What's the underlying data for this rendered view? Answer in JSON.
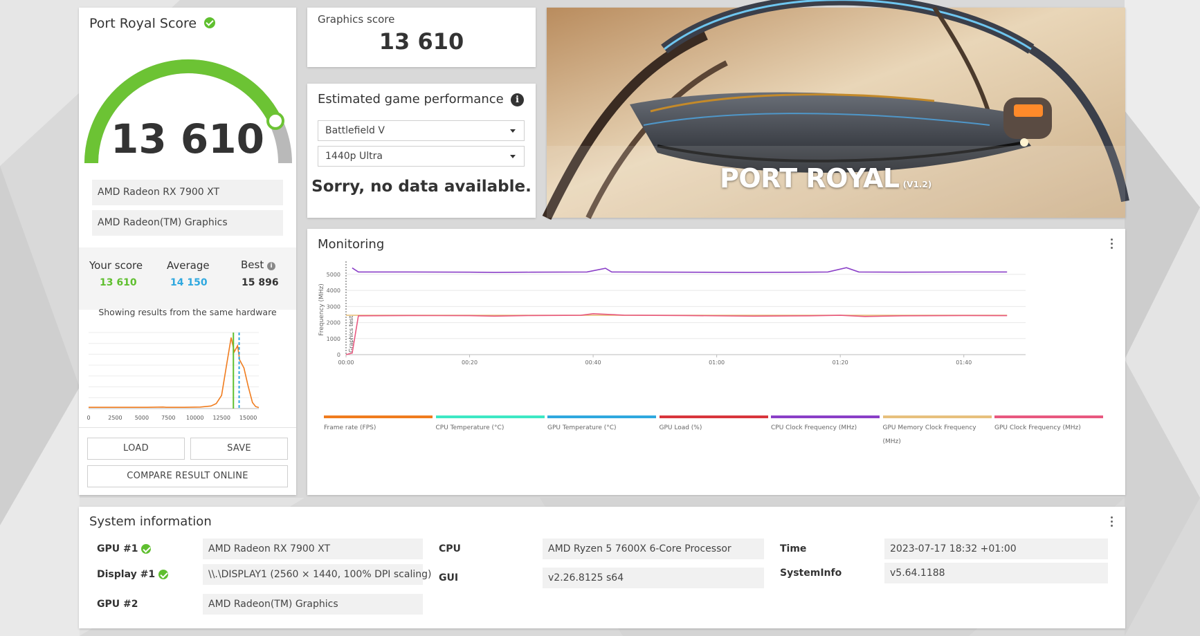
{
  "score_card": {
    "title": "Port Royal Score",
    "score": "13 610",
    "gpu_primary": "AMD Radeon RX 7900 XT",
    "gpu_secondary": "AMD Radeon(TM) Graphics",
    "your_score_label": "Your score",
    "your_score_value": "13 610",
    "average_label": "Average",
    "average_value": "14 150",
    "best_label": "Best",
    "best_value": "15 896",
    "note": "Showing results from the same hardware",
    "load_label": "LOAD",
    "save_label": "SAVE",
    "compare_label": "COMPARE RESULT ONLINE",
    "gauge_color": "#6cc334",
    "gauge_track_color": "#b9b9b9"
  },
  "distribution_chart": {
    "type": "area",
    "x_ticks": [
      "0",
      "2500",
      "5000",
      "7500",
      "10000",
      "12500",
      "15000"
    ],
    "x_range": [
      0,
      16000
    ],
    "your_score": 13610,
    "average": 14150,
    "points": [
      [
        0,
        1.2
      ],
      [
        1500,
        1.2
      ],
      [
        3000,
        1.2
      ],
      [
        5500,
        1.2
      ],
      [
        7000,
        1.5
      ],
      [
        7300,
        1.2
      ],
      [
        9000,
        1.2
      ],
      [
        10500,
        1.5
      ],
      [
        11500,
        2.5
      ],
      [
        12000,
        5
      ],
      [
        12500,
        13
      ],
      [
        13000,
        45
      ],
      [
        13400,
        70
      ],
      [
        13700,
        56
      ],
      [
        14000,
        62
      ],
      [
        14200,
        48
      ],
      [
        14600,
        40
      ],
      [
        15000,
        22
      ],
      [
        15400,
        6
      ],
      [
        15700,
        2
      ],
      [
        16000,
        1
      ]
    ],
    "curve_color": "#f07c1e",
    "your_color": "#5fbf2f",
    "average_color": "#2fa8df"
  },
  "graphics_score": {
    "label": "Graphics score",
    "value": "13 610"
  },
  "game_perf": {
    "title": "Estimated game performance",
    "game": "Battlefield V",
    "preset": "1440p Ultra",
    "message": "Sorry, no data available."
  },
  "banner": {
    "title": "PORT ROYAL",
    "version": "(V1.2)"
  },
  "monitoring": {
    "title": "Monitoring",
    "chart_data": {
      "type": "line",
      "ylabel": "Frequency (MHz)",
      "marker_label": "Graphics test",
      "y_ticks": [
        0,
        1000,
        2000,
        3000,
        4000,
        5000
      ],
      "ylim": [
        0,
        5600
      ],
      "x_ticks": [
        "00:00",
        "00:20",
        "00:40",
        "01:00",
        "01:20",
        "01:40"
      ],
      "x_tick_seconds": [
        0,
        20,
        40,
        60,
        80,
        100
      ],
      "xlim": [
        0,
        110
      ],
      "series": [
        {
          "name": "CPU Clock Frequency (MHz)",
          "color": "#8a3fc7",
          "points": [
            [
              1,
              5400
            ],
            [
              2,
              5150
            ],
            [
              10,
              5150
            ],
            [
              20,
              5140
            ],
            [
              24,
              5120
            ],
            [
              30,
              5140
            ],
            [
              39,
              5150
            ],
            [
              42,
              5380
            ],
            [
              43,
              5150
            ],
            [
              60,
              5130
            ],
            [
              65,
              5120
            ],
            [
              75,
              5140
            ],
            [
              78,
              5150
            ],
            [
              81,
              5420
            ],
            [
              83,
              5150
            ],
            [
              90,
              5140
            ],
            [
              100,
              5150
            ],
            [
              107,
              5150
            ]
          ]
        },
        {
          "name": "GPU Memory Clock Frequency (MHz)",
          "color": "#e7c07d",
          "points": [
            [
              0,
              2450
            ],
            [
              20,
              2450
            ],
            [
              40,
              2450
            ],
            [
              60,
              2450
            ],
            [
              80,
              2450
            ],
            [
              100,
              2450
            ],
            [
              107,
              2450
            ]
          ]
        },
        {
          "name": "GPU Clock Frequency (MHz)",
          "color": "#e8587f",
          "points": [
            [
              0,
              0
            ],
            [
              1,
              100
            ],
            [
              2,
              2420
            ],
            [
              10,
              2440
            ],
            [
              20,
              2430
            ],
            [
              24,
              2400
            ],
            [
              30,
              2440
            ],
            [
              38,
              2450
            ],
            [
              40,
              2550
            ],
            [
              45,
              2460
            ],
            [
              55,
              2440
            ],
            [
              66,
              2400
            ],
            [
              75,
              2420
            ],
            [
              80,
              2450
            ],
            [
              84,
              2380
            ],
            [
              90,
              2420
            ],
            [
              100,
              2440
            ],
            [
              107,
              2430
            ]
          ]
        }
      ]
    },
    "legend": [
      {
        "label": "Frame rate (FPS)",
        "color": "#f07c1e"
      },
      {
        "label": "CPU Temperature (°C)",
        "color": "#3de8c4"
      },
      {
        "label": "GPU Temperature (°C)",
        "color": "#2fa8df"
      },
      {
        "label": "GPU Load (%)",
        "color": "#d8353c"
      },
      {
        "label": "CPU Clock Frequency (MHz)",
        "color": "#8a3fc7"
      },
      {
        "label": "GPU Memory Clock Frequency (MHz)",
        "color": "#e7c07d"
      },
      {
        "label": "GPU Clock Frequency (MHz)",
        "color": "#e8587f"
      }
    ]
  },
  "system_info": {
    "title": "System information",
    "gpu1_label": "GPU #1",
    "gpu1_value": "AMD Radeon RX 7900 XT",
    "display1_label": "Display #1",
    "display1_value": "\\\\.\\DISPLAY1 (2560 × 1440, 100% DPI scaling)",
    "gpu2_label": "GPU #2",
    "gpu2_value": "AMD Radeon(TM) Graphics",
    "cpu_label": "CPU",
    "cpu_value": "AMD Ryzen 5 7600X 6-Core Processor",
    "gui_label": "GUI",
    "gui_value": "v2.26.8125 s64",
    "time_label": "Time",
    "time_value": "2023-07-17 18:32 +01:00",
    "sysinfo_label": "SystemInfo",
    "sysinfo_value": "v5.64.1188"
  }
}
